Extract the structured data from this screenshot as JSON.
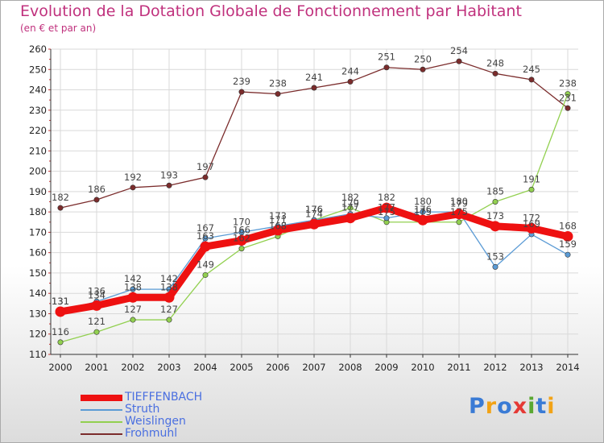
{
  "title": "Evolution de la Dotation Globale de Fonctionnement par Habitant",
  "subtitle": "(en € et par an)",
  "logo": {
    "text": "Proxiti",
    "colors": [
      "#3a7bd5",
      "#f2a316",
      "#3a7bd5",
      "#e53935",
      "#5aa832",
      "#3a7bd5",
      "#f2a316"
    ]
  },
  "colors": {
    "title": "#c0317d",
    "legend_text": "#4a6fe0",
    "grid": "#d9d9d9"
  },
  "chart_data": {
    "type": "line",
    "title": "Evolution de la Dotation Globale de Fonctionnement par Habitant",
    "subtitle": "(en € et par an)",
    "xlabel": "",
    "ylabel": "",
    "ylim": [
      110,
      260
    ],
    "yticks": [
      110,
      120,
      130,
      140,
      150,
      160,
      170,
      180,
      190,
      200,
      210,
      220,
      230,
      240,
      250,
      260
    ],
    "categories": [
      "2000",
      "2001",
      "2002",
      "2003",
      "2004",
      "2005",
      "2006",
      "2007",
      "2008",
      "2009",
      "2010",
      "2011",
      "2012",
      "2013",
      "2014"
    ],
    "grid": true,
    "legend_position": "bottom-left",
    "series": [
      {
        "name": "TIEFFENBACH",
        "color": "#ee1111",
        "values": [
          131,
          134,
          138,
          138,
          163,
          166,
          171,
          174,
          177,
          182,
          176,
          179,
          173,
          172,
          168
        ]
      },
      {
        "name": "Struth",
        "color": "#5b9bd5",
        "values": [
          131,
          136,
          142,
          142,
          167,
          170,
          173,
          176,
          179,
          177,
          180,
          180,
          153,
          169,
          159
        ]
      },
      {
        "name": "Weislingen",
        "color": "#92d050",
        "values": [
          116,
          121,
          127,
          127,
          149,
          162,
          168,
          176,
          182,
          175,
          175,
          175,
          185,
          191,
          238
        ]
      },
      {
        "name": "Frohmuhl",
        "color": "#7b2c2c",
        "values": [
          182,
          186,
          192,
          193,
          197,
          239,
          238,
          241,
          244,
          251,
          250,
          254,
          248,
          245,
          231
        ]
      }
    ]
  }
}
